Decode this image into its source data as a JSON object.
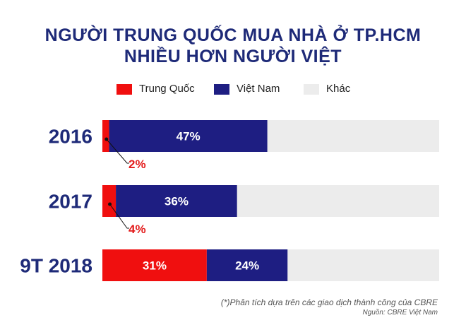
{
  "title_line1": "NGƯỜI TRUNG QUỐC MUA NHÀ Ở TP.HCM",
  "title_line2": "NHIỀU HƠN NGƯỜI VIỆT",
  "colors": {
    "trung_quoc": "#f00f0f",
    "viet_nam": "#1e1e82",
    "khac": "#ececec",
    "title": "#1e2a78",
    "label_red": "#e31b1b"
  },
  "chart_data": {
    "type": "bar",
    "orientation": "horizontal",
    "stacked": true,
    "title": "NGƯỜI TRUNG QUỐC MUA NHÀ Ở TP.HCM NHIỀU HƠN NGƯỜI VIỆT",
    "categories": [
      "2016",
      "2017",
      "9T 2018"
    ],
    "series": [
      {
        "name": "Trung Quốc",
        "values": [
          2,
          4,
          31
        ]
      },
      {
        "name": "Việt Nam",
        "values": [
          47,
          36,
          24
        ]
      },
      {
        "name": "Khác",
        "values": [
          51,
          60,
          45
        ]
      }
    ],
    "data_labels": {
      "Trung Quốc": [
        "2%",
        "4%",
        "31%"
      ],
      "Việt Nam": [
        "47%",
        "36%",
        "24%"
      ]
    },
    "xlim": [
      0,
      100
    ],
    "legend_position": "top",
    "grid": false
  },
  "footnote": "(*)Phân tích dựa trên các giao dịch thành công của CBRE",
  "source": "Nguồn: CBRE Việt Nam"
}
